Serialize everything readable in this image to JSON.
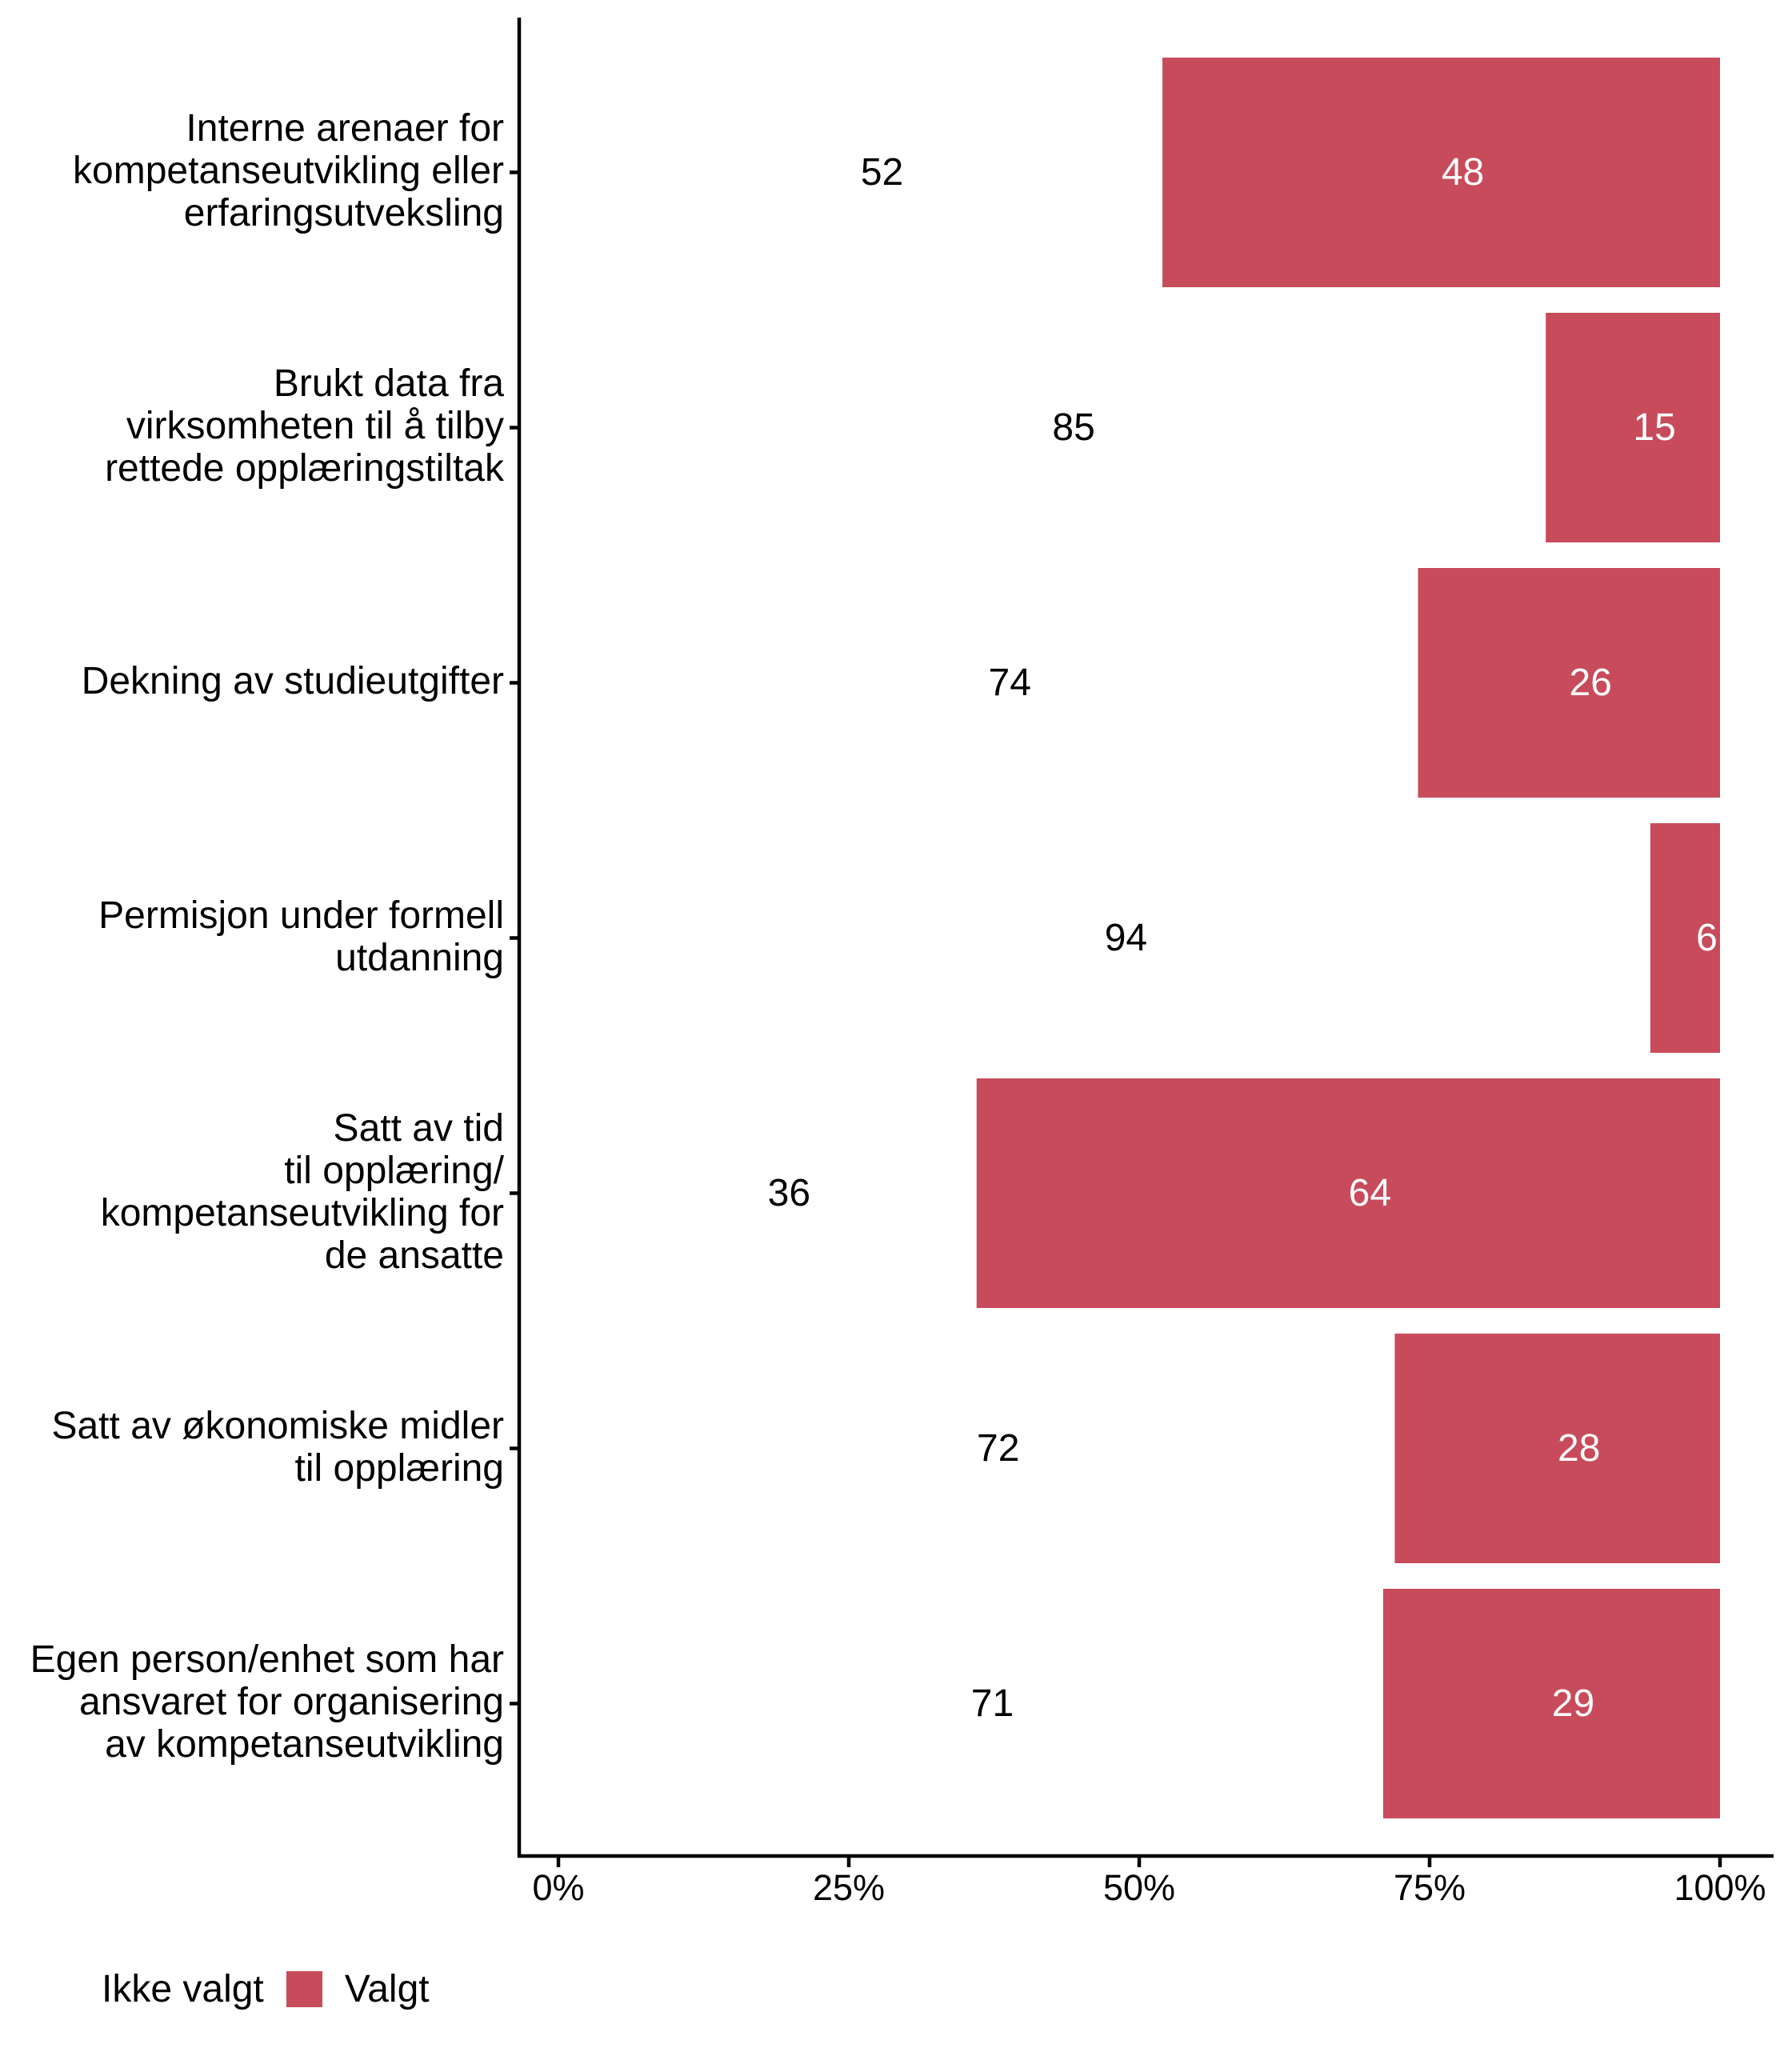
{
  "chart_data": {
    "type": "bar",
    "orientation": "horizontal",
    "stacked": true,
    "percent_stacked": true,
    "title": "",
    "xlabel": "",
    "ylabel": "",
    "xlim": [
      0,
      100
    ],
    "x_ticks": [
      "0%",
      "25%",
      "50%",
      "75%",
      "100%"
    ],
    "x_tick_values": [
      0,
      25,
      50,
      75,
      100
    ],
    "grid": false,
    "legend_position": "bottom-left",
    "categories": [
      "Interne arenaer for\nkompetanseutvikling eller\nerfaringsutveksling",
      "Brukt data fra\nvirksomheten til å tilby\nrettede opplæringstiltak",
      "Dekning av studieutgifter",
      "Permisjon under formell\nutdanning",
      "Satt av tid\ntil opplæring/\nkompetanseutvikling for\nde ansatte",
      "Satt av økonomiske midler\ntil opplæring",
      "Egen person/enhet som har\nansvaret for organisering\nav kompetanseutvikling"
    ],
    "series": [
      {
        "name": "Ikke valgt",
        "color": "#FFFFFF",
        "label_color": "#000000",
        "values": [
          52,
          85,
          74,
          94,
          36,
          72,
          71
        ]
      },
      {
        "name": "Valgt",
        "color": "#C84B5B",
        "label_color": "#FFFFFF",
        "values": [
          48,
          15,
          26,
          6,
          64,
          28,
          29
        ]
      }
    ]
  },
  "legend": {
    "title": "Ikke valgt",
    "items": [
      {
        "label": "Valgt",
        "color": "#C84B5B"
      }
    ]
  }
}
